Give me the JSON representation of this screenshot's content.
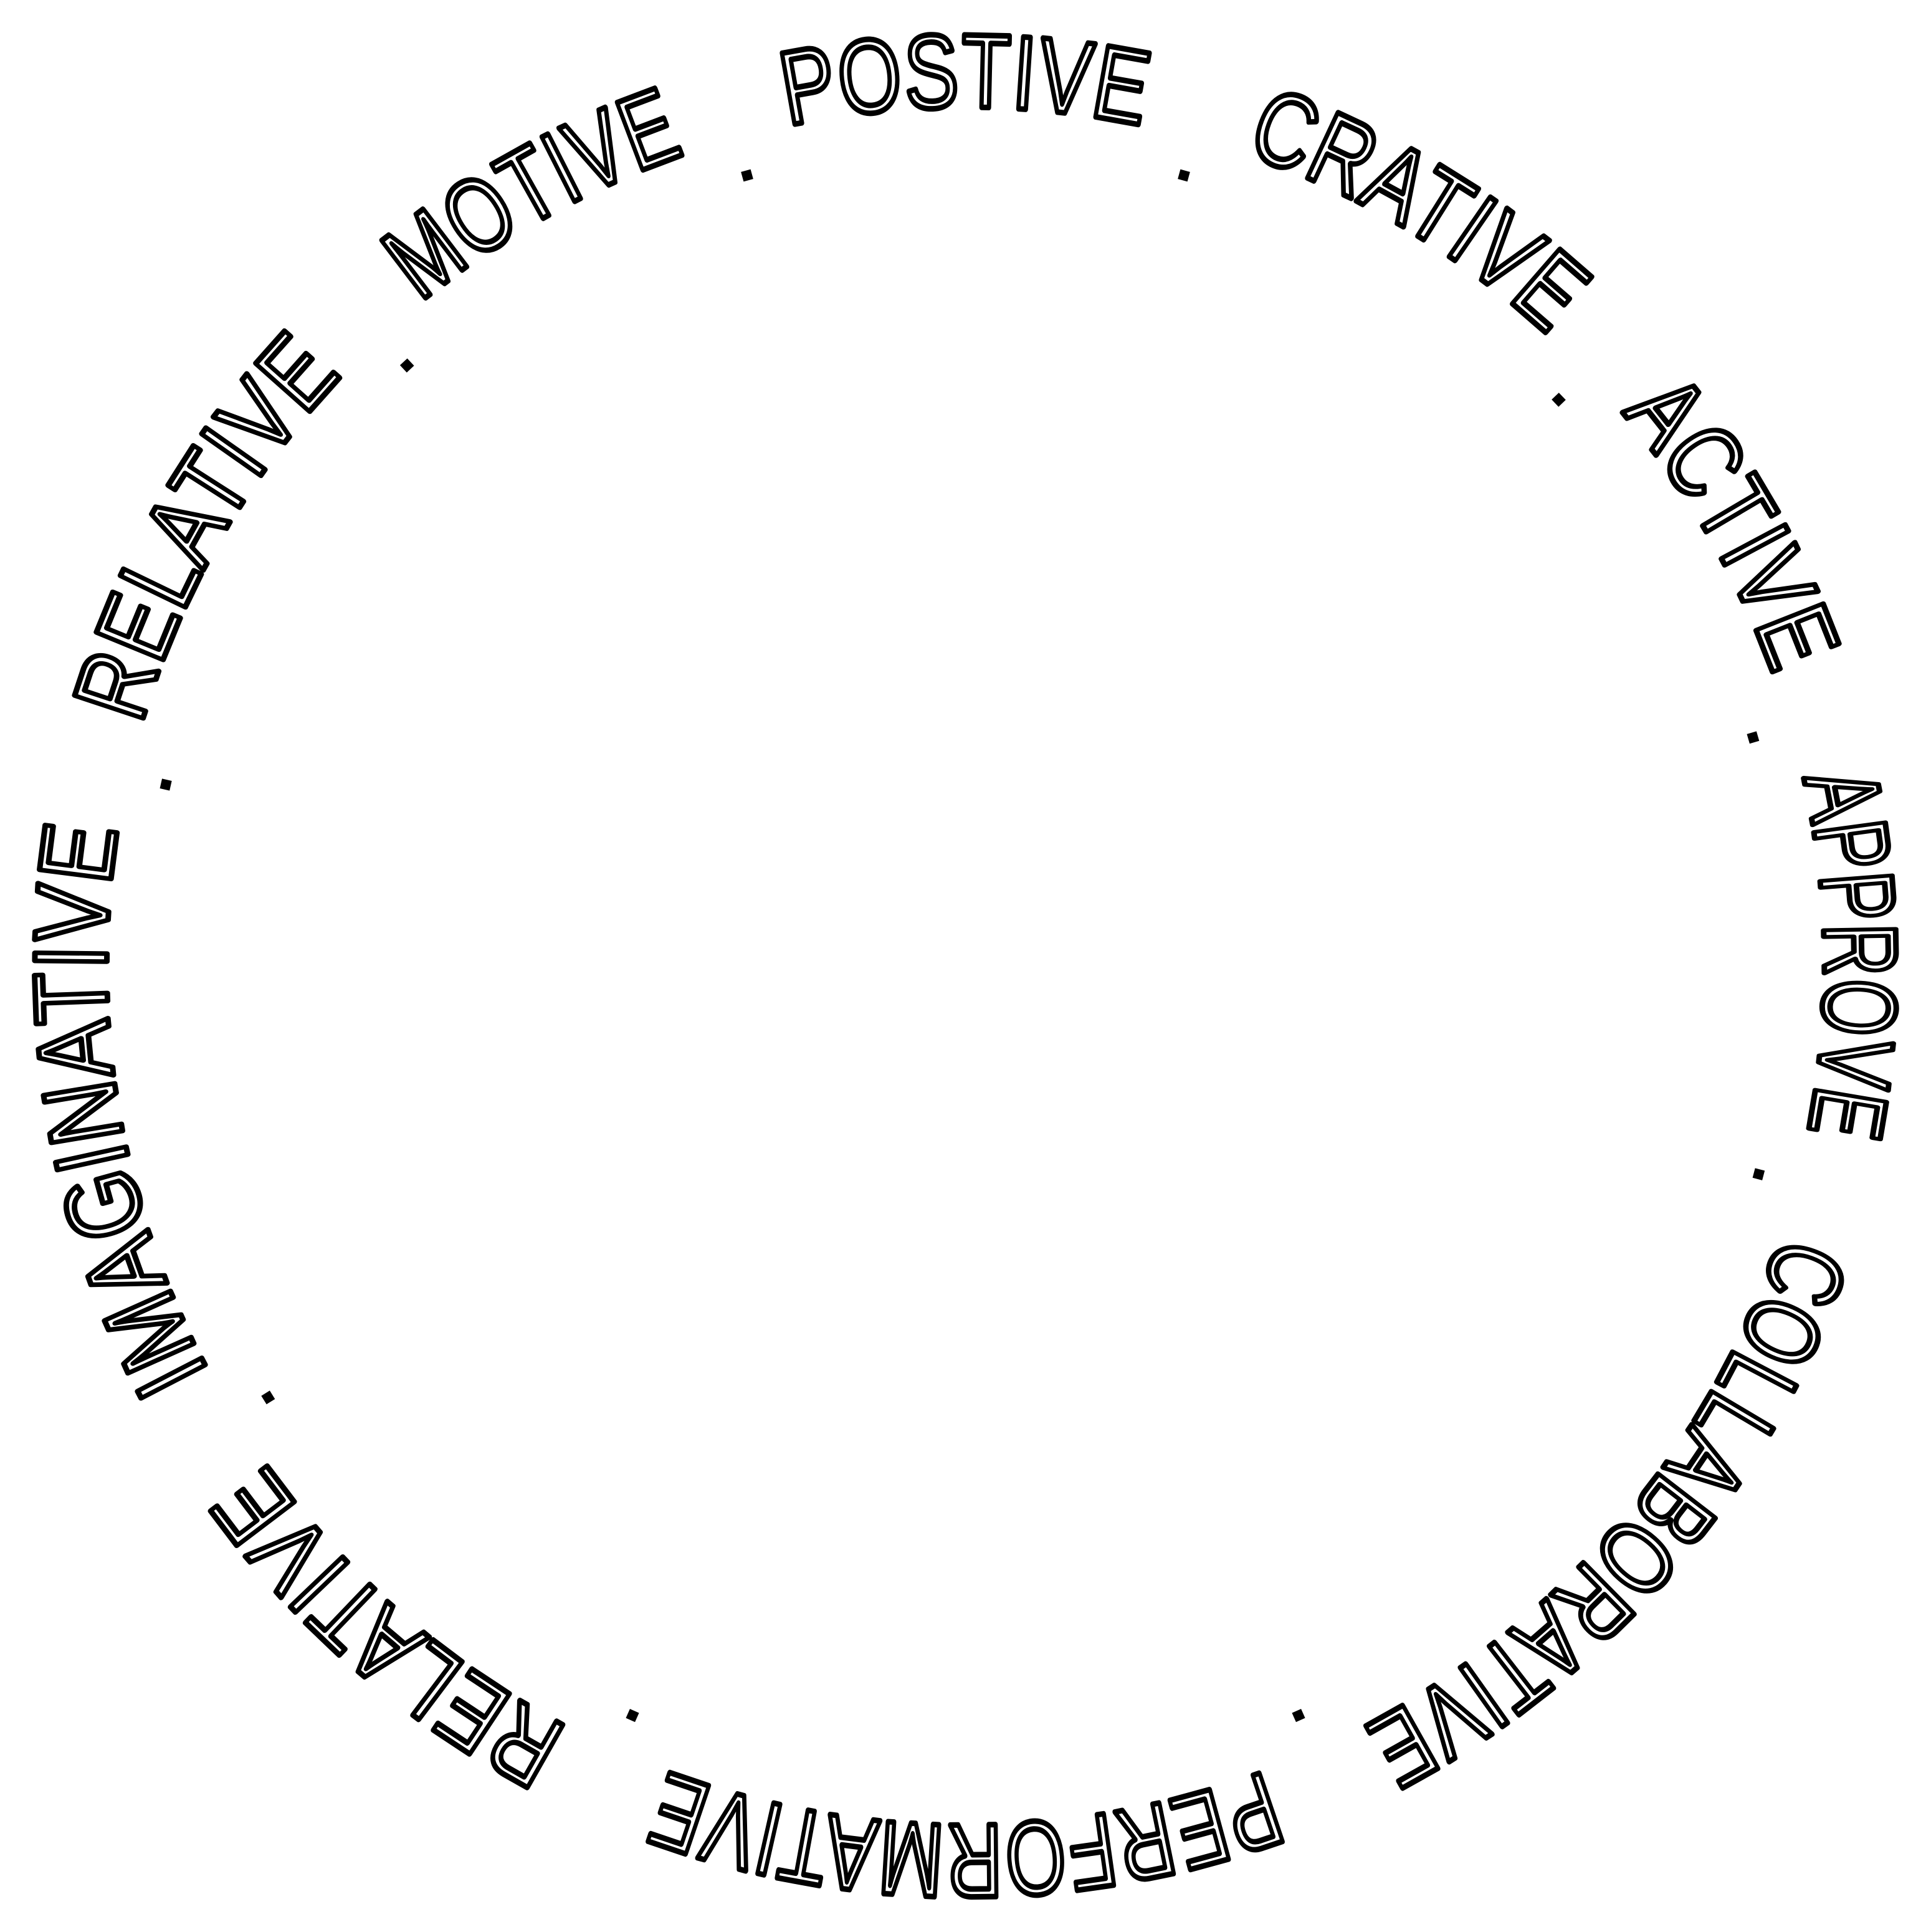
{
  "badge": {
    "words": [
      "POSTIVE",
      "CRATIVE",
      "ACTIVE",
      "APPROVE",
      "COLLABORATIVE",
      "PERFORMATIVE",
      "RELATIVE",
      "IMAGINATIVE",
      "RELATIVE",
      "MOTIVE"
    ],
    "separator": "·",
    "text_color": "#000000",
    "background_color": "#ffffff"
  }
}
